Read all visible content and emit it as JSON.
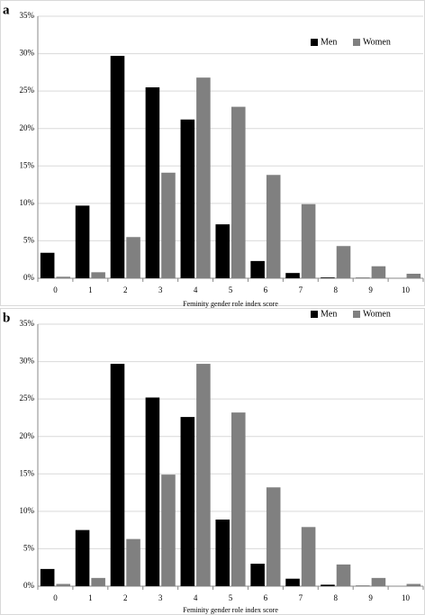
{
  "chart_data": [
    {
      "type": "bar",
      "panel": "a",
      "xlabel": "Feminity gender role index score",
      "categories": [
        "0",
        "1",
        "2",
        "3",
        "4",
        "5",
        "6",
        "7",
        "8",
        "9",
        "10"
      ],
      "series": [
        {
          "name": "Men",
          "color": "#000000",
          "values": [
            3.4,
            9.7,
            29.7,
            25.5,
            21.2,
            7.2,
            2.3,
            0.7,
            0.1,
            0.05,
            0
          ]
        },
        {
          "name": "Women",
          "color": "#808080",
          "values": [
            0.2,
            0.8,
            5.5,
            14.1,
            26.8,
            22.9,
            13.8,
            9.9,
            4.3,
            1.6,
            0.6
          ]
        }
      ],
      "ylim": [
        0,
        35
      ],
      "yticks": [
        {
          "value": 0,
          "label": "0%"
        },
        {
          "value": 5,
          "label": "5%"
        },
        {
          "value": 10,
          "label": "10%"
        },
        {
          "value": 15,
          "label": "15%"
        },
        {
          "value": 20,
          "label": "20%"
        },
        {
          "value": 25,
          "label": "25%"
        },
        {
          "value": 30,
          "label": "30%"
        },
        {
          "value": 35,
          "label": "35%"
        }
      ],
      "grid": true,
      "legend": "top-right"
    },
    {
      "type": "bar",
      "panel": "b",
      "xlabel": "Feminity gender role index score",
      "categories": [
        "0",
        "1",
        "2",
        "3",
        "4",
        "5",
        "6",
        "7",
        "8",
        "9",
        "10"
      ],
      "series": [
        {
          "name": "Men",
          "color": "#000000",
          "values": [
            2.3,
            7.5,
            29.7,
            25.2,
            22.6,
            8.9,
            3.0,
            1.0,
            0.2,
            0.05,
            0
          ]
        },
        {
          "name": "Women",
          "color": "#808080",
          "values": [
            0.3,
            1.1,
            6.3,
            14.9,
            29.7,
            23.2,
            13.2,
            7.9,
            2.9,
            1.1,
            0.3
          ]
        }
      ],
      "ylim": [
        0,
        35
      ],
      "yticks": [
        {
          "value": 0,
          "label": "0%"
        },
        {
          "value": 5,
          "label": "5%"
        },
        {
          "value": 10,
          "label": "10%"
        },
        {
          "value": 15,
          "label": "15%"
        },
        {
          "value": 20,
          "label": "20%"
        },
        {
          "value": 25,
          "label": "25%"
        },
        {
          "value": 30,
          "label": "30%"
        },
        {
          "value": 35,
          "label": "35%"
        }
      ],
      "grid": true,
      "legend": "top-right"
    }
  ]
}
